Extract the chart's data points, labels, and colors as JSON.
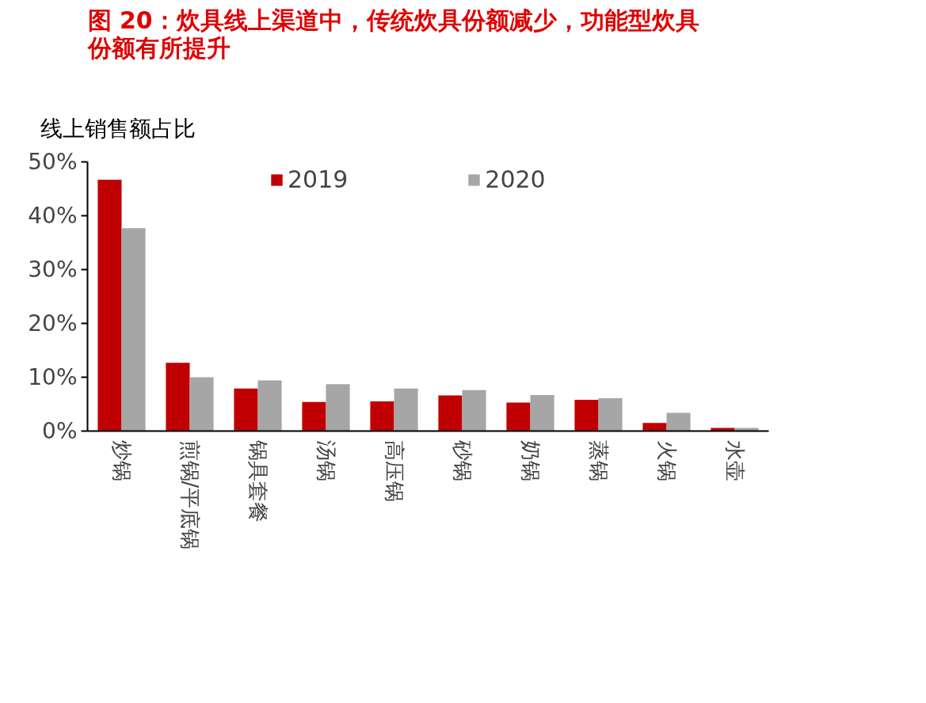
{
  "chart_data": {
    "type": "bar",
    "title": "图 20：炊具线上渠道中，传统炊具份额减少，功能型炊具份额有所提升",
    "ylabel": "线上销售额占比",
    "categories": [
      "炒锅",
      "煎锅/平底锅",
      "锅具套餐",
      "汤锅",
      "高压锅",
      "砂锅",
      "奶锅",
      "蒸锅",
      "火锅",
      "水壶"
    ],
    "series": [
      {
        "name": "2019",
        "color": "#c00000",
        "values": [
          46.7,
          12.7,
          7.9,
          5.4,
          5.5,
          6.6,
          5.3,
          5.8,
          1.5,
          0.6
        ]
      },
      {
        "name": "2020",
        "color": "#a6a6a6",
        "values": [
          37.7,
          10.0,
          9.4,
          8.7,
          7.9,
          7.6,
          6.7,
          6.1,
          3.4,
          0.6
        ]
      }
    ],
    "ylim": [
      0,
      50
    ],
    "yticks": [
      {
        "value": 0,
        "label": "0%"
      },
      {
        "value": 10,
        "label": "10%"
      },
      {
        "value": 20,
        "label": "20%"
      },
      {
        "value": 30,
        "label": "30%"
      },
      {
        "value": 40,
        "label": "40%"
      },
      {
        "value": 50,
        "label": "50%"
      }
    ],
    "grid": false,
    "legend": "top"
  }
}
